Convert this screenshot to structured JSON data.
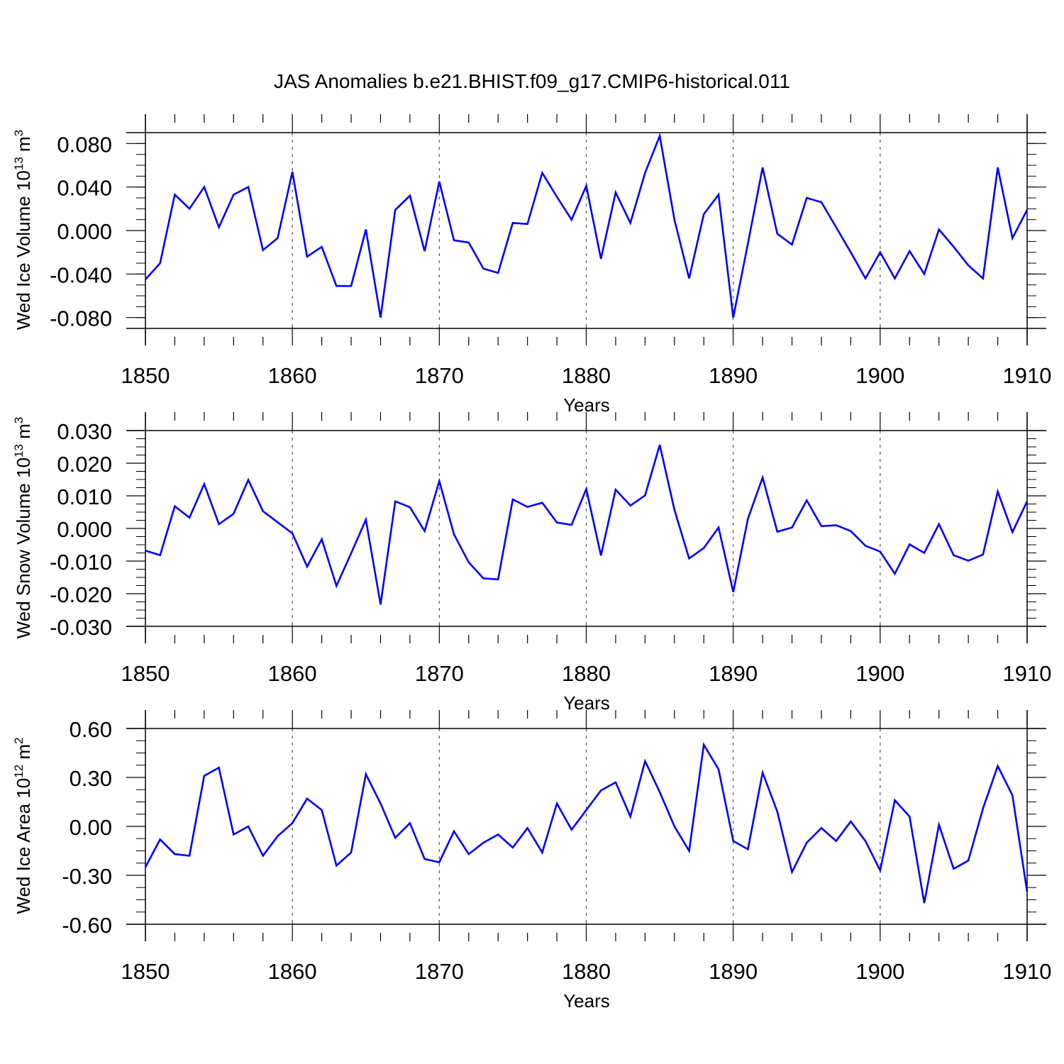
{
  "title": "JAS Anomalies b.e21.BHIST.f09_g17.CMIP6-historical.011",
  "line_color": "#0000ff",
  "chart_data": [
    {
      "type": "line",
      "ylabel_main": "Wed Ice Volume 10",
      "ylabel_exp": "13",
      "ylabel_unit": " m",
      "ylabel_unit_exp": "3",
      "xlabel": "Years",
      "xlim": [
        1850,
        1910
      ],
      "ylim": [
        -0.09,
        0.09
      ],
      "x_ticks": [
        1850,
        1860,
        1870,
        1880,
        1890,
        1900,
        1910
      ],
      "x_tick_labels": [
        "1850",
        "1860",
        "1870",
        "1880",
        "1890",
        "1900",
        "1910"
      ],
      "y_ticks": [
        -0.08,
        -0.04,
        0.0,
        0.04,
        0.08
      ],
      "y_tick_labels": [
        "-0.080",
        "-0.040",
        "0.000",
        "0.040",
        "0.080"
      ],
      "y_minor_step": 0.01,
      "x": [
        1850,
        1851,
        1852,
        1853,
        1854,
        1855,
        1856,
        1857,
        1858,
        1859,
        1860,
        1861,
        1862,
        1863,
        1864,
        1865,
        1866,
        1867,
        1868,
        1869,
        1870,
        1871,
        1872,
        1873,
        1874,
        1875,
        1876,
        1877,
        1878,
        1879,
        1880,
        1881,
        1882,
        1883,
        1884,
        1885,
        1886,
        1887,
        1888,
        1889,
        1890,
        1891,
        1892,
        1893,
        1894,
        1895,
        1896,
        1897,
        1898,
        1899,
        1900,
        1901,
        1902,
        1903,
        1904,
        1905,
        1906,
        1907,
        1908,
        1909,
        1910
      ],
      "values": [
        -0.045,
        -0.03,
        0.033,
        0.02,
        0.04,
        0.003,
        0.033,
        0.04,
        -0.018,
        -0.007,
        0.054,
        -0.024,
        -0.015,
        -0.051,
        -0.051,
        0.001,
        -0.08,
        0.019,
        0.032,
        -0.019,
        0.045,
        -0.009,
        -0.011,
        -0.035,
        -0.039,
        0.007,
        0.006,
        0.053,
        0.031,
        0.01,
        0.041,
        -0.026,
        0.035,
        0.007,
        0.053,
        0.087,
        0.01,
        -0.044,
        0.015,
        0.033,
        -0.08,
        -0.012,
        0.058,
        -0.003,
        -0.013,
        0.03,
        0.026,
        0.003,
        -0.02,
        -0.044,
        -0.02,
        -0.044,
        -0.019,
        -0.04,
        0.001,
        -0.015,
        -0.032,
        -0.044,
        0.058,
        -0.007,
        0.019
      ]
    },
    {
      "type": "line",
      "ylabel_main": "Wed Snow Volume 10",
      "ylabel_exp": "13",
      "ylabel_unit": " m",
      "ylabel_unit_exp": "3",
      "xlabel": "Years",
      "xlim": [
        1850,
        1910
      ],
      "ylim": [
        -0.03,
        0.03
      ],
      "x_ticks": [
        1850,
        1860,
        1870,
        1880,
        1890,
        1900,
        1910
      ],
      "x_tick_labels": [
        "1850",
        "1860",
        "1870",
        "1880",
        "1890",
        "1900",
        "1910"
      ],
      "y_ticks": [
        -0.03,
        -0.02,
        -0.01,
        0.0,
        0.01,
        0.02,
        0.03
      ],
      "y_tick_labels": [
        "-0.030",
        "-0.020",
        "-0.010",
        "0.000",
        "0.010",
        "0.020",
        "0.030"
      ],
      "y_minor_step": 0.0025,
      "x": [
        1850,
        1851,
        1852,
        1853,
        1854,
        1855,
        1856,
        1857,
        1858,
        1859,
        1860,
        1861,
        1862,
        1863,
        1864,
        1865,
        1866,
        1867,
        1868,
        1869,
        1870,
        1871,
        1872,
        1873,
        1874,
        1875,
        1876,
        1877,
        1878,
        1879,
        1880,
        1881,
        1882,
        1883,
        1884,
        1885,
        1886,
        1887,
        1888,
        1889,
        1890,
        1891,
        1892,
        1893,
        1894,
        1895,
        1896,
        1897,
        1898,
        1899,
        1900,
        1901,
        1902,
        1903,
        1904,
        1905,
        1906,
        1907,
        1908,
        1909,
        1910
      ],
      "values": [
        -0.0068,
        -0.0082,
        0.0068,
        0.0033,
        0.0136,
        0.0013,
        0.0045,
        0.0149,
        0.0053,
        0.0019,
        -0.0015,
        -0.0117,
        -0.0033,
        -0.0176,
        -0.0076,
        0.0027,
        -0.0233,
        0.0083,
        0.0065,
        -0.0008,
        0.0145,
        -0.0018,
        -0.0104,
        -0.0153,
        -0.0156,
        0.0089,
        0.0066,
        0.0079,
        0.0018,
        0.0011,
        0.0121,
        -0.0083,
        0.0119,
        0.007,
        0.0101,
        0.0256,
        0.0057,
        -0.0092,
        -0.006,
        0.0003,
        -0.0195,
        0.003,
        0.0156,
        -0.001,
        0.0003,
        0.0086,
        0.0007,
        0.001,
        -0.0008,
        -0.0053,
        -0.0071,
        -0.0139,
        -0.0049,
        -0.0075,
        0.0013,
        -0.0082,
        -0.0099,
        -0.008,
        0.0113,
        -0.0011,
        0.0083
      ]
    },
    {
      "type": "line",
      "ylabel_main": "Wed Ice Area 10",
      "ylabel_exp": "12",
      "ylabel_unit": " m",
      "ylabel_unit_exp": "2",
      "xlabel": "Years",
      "xlim": [
        1850,
        1910
      ],
      "ylim": [
        -0.6,
        0.6
      ],
      "x_ticks": [
        1850,
        1860,
        1870,
        1880,
        1890,
        1900,
        1910
      ],
      "x_tick_labels": [
        "1850",
        "1860",
        "1870",
        "1880",
        "1890",
        "1900",
        "1910"
      ],
      "y_ticks": [
        -0.6,
        -0.3,
        0.0,
        0.3,
        0.6
      ],
      "y_tick_labels": [
        "-0.60",
        "-0.30",
        "0.00",
        "0.30",
        "0.60"
      ],
      "y_minor_step": 0.075,
      "x": [
        1850,
        1851,
        1852,
        1853,
        1854,
        1855,
        1856,
        1857,
        1858,
        1859,
        1860,
        1861,
        1862,
        1863,
        1864,
        1865,
        1866,
        1867,
        1868,
        1869,
        1870,
        1871,
        1872,
        1873,
        1874,
        1875,
        1876,
        1877,
        1878,
        1879,
        1880,
        1881,
        1882,
        1883,
        1884,
        1885,
        1886,
        1887,
        1888,
        1889,
        1890,
        1891,
        1892,
        1893,
        1894,
        1895,
        1896,
        1897,
        1898,
        1899,
        1900,
        1901,
        1902,
        1903,
        1904,
        1905,
        1906,
        1907,
        1908,
        1909,
        1910
      ],
      "values": [
        -0.25,
        -0.08,
        -0.17,
        -0.18,
        0.31,
        0.36,
        -0.05,
        0.0,
        -0.18,
        -0.06,
        0.02,
        0.17,
        0.1,
        -0.24,
        -0.16,
        0.32,
        0.14,
        -0.07,
        0.02,
        -0.2,
        -0.22,
        -0.03,
        -0.17,
        -0.1,
        -0.05,
        -0.13,
        -0.01,
        -0.16,
        0.14,
        -0.02,
        0.1,
        0.22,
        0.27,
        0.06,
        0.4,
        0.21,
        0.0,
        -0.15,
        0.5,
        0.35,
        -0.09,
        -0.14,
        0.33,
        0.09,
        -0.28,
        -0.1,
        -0.01,
        -0.09,
        0.03,
        -0.09,
        -0.27,
        0.16,
        0.06,
        -0.47,
        0.01,
        -0.26,
        -0.21,
        0.11,
        0.37,
        0.19,
        -0.4
      ]
    }
  ]
}
